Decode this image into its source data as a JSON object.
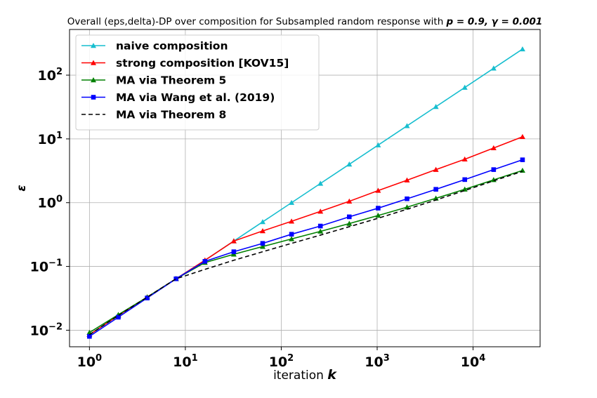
{
  "chart_data": {
    "type": "line",
    "title": "Overall (eps,delta)-DP over composition for Subsampled random response with",
    "title_params": "p = 0.9, γ = 0.001",
    "xlabel": "iteration",
    "xlabel_var": "k",
    "ylabel": "ε",
    "xscale": "log",
    "yscale": "log",
    "xlim": [
      0.62,
      50000
    ],
    "ylim": [
      0.0055,
      520
    ],
    "grid": true,
    "legend_position": "top-left",
    "x_ticks": [
      {
        "value": 1,
        "base": "10",
        "exp": "0"
      },
      {
        "value": 10,
        "base": "10",
        "exp": "1"
      },
      {
        "value": 100,
        "base": "10",
        "exp": "2"
      },
      {
        "value": 1000,
        "base": "10",
        "exp": "3"
      },
      {
        "value": 10000,
        "base": "10",
        "exp": "4"
      }
    ],
    "y_ticks": [
      {
        "value": 0.01,
        "base": "10",
        "exp": "−2"
      },
      {
        "value": 0.1,
        "base": "10",
        "exp": "−1"
      },
      {
        "value": 1,
        "base": "10",
        "exp": "0"
      },
      {
        "value": 10,
        "base": "10",
        "exp": "1"
      },
      {
        "value": 100,
        "base": "10",
        "exp": "2"
      }
    ],
    "x": [
      1,
      2,
      4,
      8,
      16,
      32,
      64,
      128,
      256,
      512,
      1024,
      2048,
      4096,
      8192,
      16384,
      32768
    ],
    "series": [
      {
        "name": "naive composition",
        "color": "#17becf",
        "marker": "triangle",
        "dashed": false,
        "values": [
          0.0085,
          0.017,
          0.033,
          0.064,
          0.125,
          0.25,
          0.5,
          1.0,
          2.0,
          4.0,
          8.0,
          16.0,
          32.0,
          64.0,
          128.0,
          256.0
        ]
      },
      {
        "name": "strong composition [KOV15]",
        "color": "#ff0000",
        "marker": "triangle",
        "dashed": false,
        "values": [
          0.0085,
          0.017,
          0.033,
          0.064,
          0.125,
          0.25,
          0.36,
          0.51,
          0.73,
          1.05,
          1.55,
          2.25,
          3.3,
          4.8,
          7.2,
          10.8
        ]
      },
      {
        "name": "MA via Theorem 5",
        "color": "#008000",
        "marker": "triangle",
        "dashed": false,
        "values": [
          0.0092,
          0.0175,
          0.033,
          0.064,
          0.115,
          0.155,
          0.205,
          0.27,
          0.355,
          0.47,
          0.63,
          0.85,
          1.17,
          1.62,
          2.28,
          3.2
        ]
      },
      {
        "name": "MA via Wang et al. (2019)",
        "color": "#0000ff",
        "marker": "square",
        "dashed": false,
        "values": [
          0.008,
          0.016,
          0.032,
          0.064,
          0.12,
          0.17,
          0.23,
          0.32,
          0.43,
          0.6,
          0.82,
          1.15,
          1.62,
          2.3,
          3.3,
          4.7
        ]
      },
      {
        "name": "MA via Theorem 8",
        "color": "#000000",
        "marker": "none",
        "dashed": true,
        "values": [
          0.0085,
          0.017,
          0.033,
          0.064,
          0.09,
          0.125,
          0.17,
          0.23,
          0.31,
          0.42,
          0.57,
          0.79,
          1.1,
          1.55,
          2.2,
          3.1
        ]
      }
    ]
  }
}
